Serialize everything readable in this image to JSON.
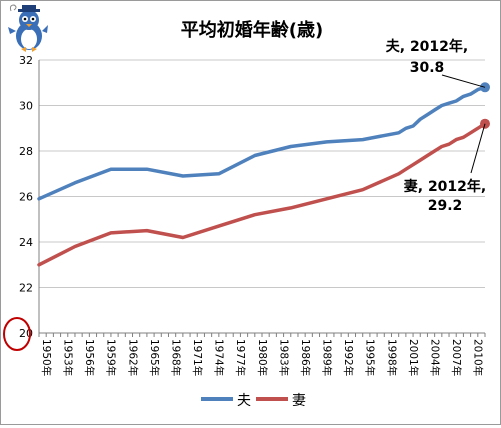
{
  "chart_data": {
    "type": "line",
    "title": "平均初婚年齢(歳)",
    "ylim": [
      20,
      32
    ],
    "yticks": [
      20,
      22,
      24,
      26,
      28,
      30,
      32
    ],
    "x_tick_labels": [
      "1950年",
      "1953年",
      "1956年",
      "1959年",
      "1962年",
      "1965年",
      "1968年",
      "1971年",
      "1974年",
      "1977年",
      "1980年",
      "1983年",
      "1986年",
      "1989年",
      "1992年",
      "1995年",
      "1998年",
      "2001年",
      "2004年",
      "2007年",
      "2010年"
    ],
    "grid": true,
    "legend_position": "bottom",
    "series": [
      {
        "name": "夫",
        "color": "#4f81bd",
        "x": [
          1950,
          1955,
          1960,
          1965,
          1970,
          1975,
          1980,
          1985,
          1990,
          1995,
          2000,
          2001,
          2002,
          2003,
          2004,
          2005,
          2006,
          2007,
          2008,
          2009,
          2010,
          2011,
          2012
        ],
        "values": [
          25.9,
          26.6,
          27.2,
          27.2,
          26.9,
          27.0,
          27.8,
          28.2,
          28.4,
          28.5,
          28.8,
          29.0,
          29.1,
          29.4,
          29.6,
          29.8,
          30.0,
          30.1,
          30.2,
          30.4,
          30.5,
          30.7,
          30.8
        ]
      },
      {
        "name": "妻",
        "color": "#c0504d",
        "x": [
          1950,
          1955,
          1960,
          1965,
          1970,
          1975,
          1980,
          1985,
          1990,
          1995,
          2000,
          2001,
          2002,
          2003,
          2004,
          2005,
          2006,
          2007,
          2008,
          2009,
          2010,
          2011,
          2012
        ],
        "values": [
          23.0,
          23.8,
          24.4,
          24.5,
          24.2,
          24.7,
          25.2,
          25.5,
          25.9,
          26.3,
          27.0,
          27.2,
          27.4,
          27.6,
          27.8,
          28.0,
          28.2,
          28.3,
          28.5,
          28.6,
          28.8,
          29.0,
          29.2
        ]
      }
    ],
    "annotations": [
      {
        "series": 0,
        "line1": "夫, 2012年,",
        "line2": "30.8"
      },
      {
        "series": 1,
        "line1": "妻, 2012年,",
        "line2": "29.2"
      }
    ]
  },
  "decorations": {
    "mascot": "penguin-mascot-icon",
    "y_origin_highlight": "red-circle"
  }
}
